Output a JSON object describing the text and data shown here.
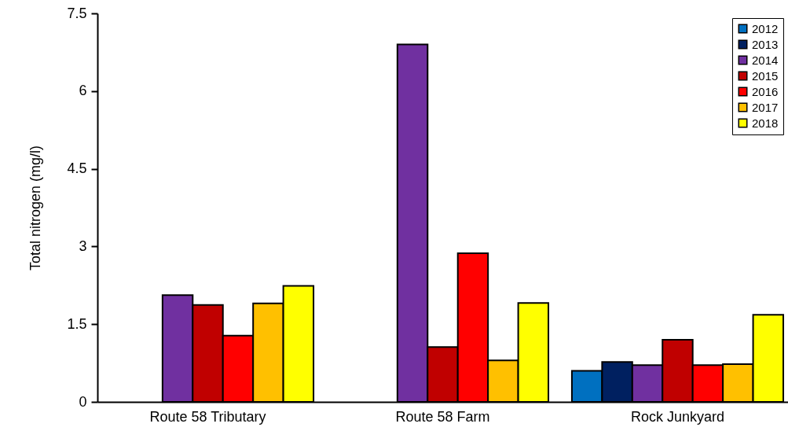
{
  "chart_data": {
    "type": "bar",
    "ylabel": "Total nitrogen (mg/l)",
    "categories": [
      "Route 58 Tributary",
      "Route 58 Farm",
      "Rock Junkyard"
    ],
    "series": [
      {
        "name": "2012",
        "color": "#0070c0",
        "values": [
          null,
          null,
          0.6
        ]
      },
      {
        "name": "2013",
        "color": "#002060",
        "values": [
          null,
          null,
          0.77
        ]
      },
      {
        "name": "2014",
        "color": "#7030a0",
        "values": [
          2.06,
          6.9,
          0.71
        ]
      },
      {
        "name": "2015",
        "color": "#c00000",
        "values": [
          1.87,
          1.06,
          1.2
        ]
      },
      {
        "name": "2016",
        "color": "#ff0000",
        "values": [
          1.28,
          2.87,
          0.71
        ]
      },
      {
        "name": "2017",
        "color": "#ffc000",
        "values": [
          1.9,
          0.8,
          0.73
        ]
      },
      {
        "name": "2018",
        "color": "#ffff00",
        "values": [
          2.24,
          1.91,
          1.68
        ]
      }
    ],
    "ylim": [
      0,
      7.5
    ],
    "yticks": [
      0,
      1.5,
      3,
      4.5,
      6,
      7.5
    ],
    "legend": "top right"
  }
}
